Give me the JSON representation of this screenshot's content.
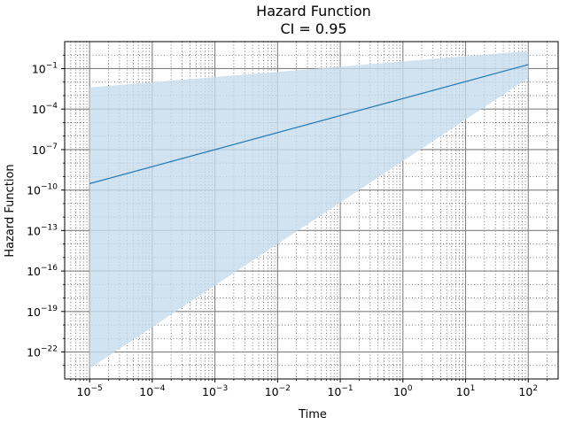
{
  "chart_data": {
    "type": "line",
    "title": "Hazard Function",
    "subtitle": "CI = 0.95",
    "xlabel": "Time",
    "ylabel": "Hazard Function",
    "xscale": "log",
    "yscale": "log",
    "xlim": [
      4e-06,
      300
    ],
    "ylim": [
      1e-24,
      10.0
    ],
    "x_ticks": [
      {
        "value": 1e-05,
        "base": "10",
        "exp": "−5"
      },
      {
        "value": 0.0001,
        "base": "10",
        "exp": "−4"
      },
      {
        "value": 0.001,
        "base": "10",
        "exp": "−3"
      },
      {
        "value": 0.01,
        "base": "10",
        "exp": "−2"
      },
      {
        "value": 0.1,
        "base": "10",
        "exp": "−1"
      },
      {
        "value": 1.0,
        "base": "10",
        "exp": "0"
      },
      {
        "value": 10.0,
        "base": "10",
        "exp": "1"
      },
      {
        "value": 100.0,
        "base": "10",
        "exp": "2"
      }
    ],
    "y_ticks": [
      {
        "value": 0.1,
        "base": "10",
        "exp": "−1"
      },
      {
        "value": 0.0001,
        "base": "10",
        "exp": "−4"
      },
      {
        "value": 1e-07,
        "base": "10",
        "exp": "−7"
      },
      {
        "value": 1e-10,
        "base": "10",
        "exp": "−10"
      },
      {
        "value": 1e-13,
        "base": "10",
        "exp": "−13"
      },
      {
        "value": 1e-16,
        "base": "10",
        "exp": "−16"
      },
      {
        "value": 1e-19,
        "base": "10",
        "exp": "−19"
      },
      {
        "value": 1e-22,
        "base": "10",
        "exp": "−22"
      }
    ],
    "grid": "major solid gray, minor dotted",
    "series": [
      {
        "color": "#1f77b4",
        "x": [
          1e-05,
          100
        ],
        "y": [
          3e-10,
          0.2
        ],
        "ci_lower": [
          6e-24,
          0.02
        ],
        "ci_upper": [
          0.004,
          2.0
        ]
      }
    ],
    "ci_fill_color": "#c6dcec",
    "colors": {
      "line": "#1f77b4",
      "ci_fill": "#c6dcec",
      "major_grid": "#808080",
      "minor_grid": "#555555"
    }
  }
}
